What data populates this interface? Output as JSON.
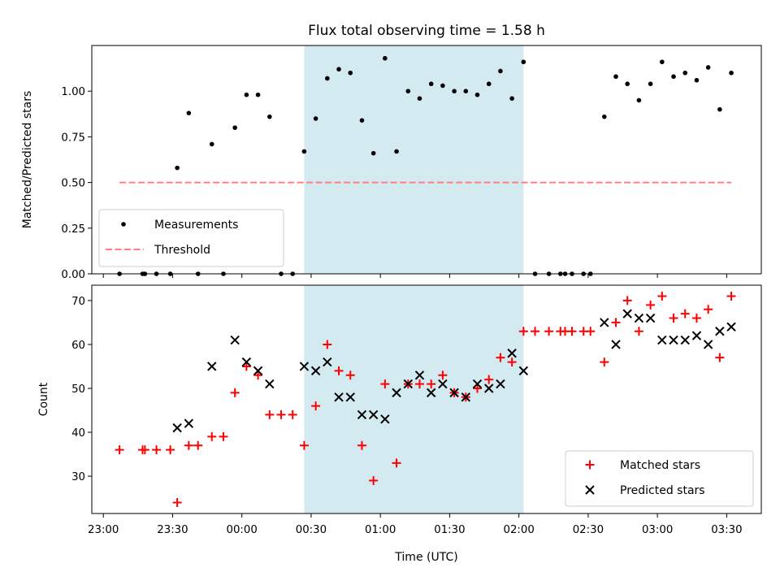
{
  "chart_data": [
    {
      "type": "scatter",
      "title": "Flux total observing time = 1.58 h",
      "xlabel": "",
      "ylabel": "Matched/Predicted stars",
      "x_axis_type": "time",
      "xlim": [
        "22:55",
        "03:45"
      ],
      "ylim": [
        0,
        1.25
      ],
      "y_ticks": [
        0.0,
        0.25,
        0.5,
        0.75,
        1.0
      ],
      "y_tick_labels": [
        "0.00",
        "0.25",
        "0.50",
        "0.75",
        "1.00"
      ],
      "shaded_interval": [
        "00:27",
        "02:02"
      ],
      "shade_color": "#d3eaf1",
      "legend_position": "lower left",
      "series": [
        {
          "name": "Measurements",
          "marker": "dot",
          "color": "#000000",
          "points": [
            [
              "23:07",
              0
            ],
            [
              "23:17",
              0
            ],
            [
              "23:18",
              0
            ],
            [
              "23:23",
              0
            ],
            [
              "23:29",
              0
            ],
            [
              "23:32",
              0.58
            ],
            [
              "23:37",
              0.88
            ],
            [
              "23:41",
              0
            ],
            [
              "23:47",
              0.71
            ],
            [
              "23:52",
              0
            ],
            [
              "23:57",
              0.8
            ],
            [
              "00:02",
              0.98
            ],
            [
              "00:07",
              0.98
            ],
            [
              "00:12",
              0.86
            ],
            [
              "00:17",
              0
            ],
            [
              "00:22",
              0
            ],
            [
              "00:27",
              0.67
            ],
            [
              "00:32",
              0.85
            ],
            [
              "00:37",
              1.07
            ],
            [
              "00:42",
              1.12
            ],
            [
              "00:47",
              1.1
            ],
            [
              "00:52",
              0.84
            ],
            [
              "00:57",
              0.66
            ],
            [
              "01:02",
              1.18
            ],
            [
              "01:07",
              0.67
            ],
            [
              "01:12",
              1.0
            ],
            [
              "01:17",
              0.96
            ],
            [
              "01:22",
              1.04
            ],
            [
              "01:27",
              1.03
            ],
            [
              "01:32",
              1.0
            ],
            [
              "01:37",
              1.0
            ],
            [
              "01:42",
              0.98
            ],
            [
              "01:47",
              1.04
            ],
            [
              "01:52",
              1.11
            ],
            [
              "01:57",
              0.96
            ],
            [
              "02:02",
              1.16
            ],
            [
              "02:07",
              0
            ],
            [
              "02:13",
              0
            ],
            [
              "02:18",
              0
            ],
            [
              "02:20",
              0
            ],
            [
              "02:23",
              0
            ],
            [
              "02:28",
              0
            ],
            [
              "02:31",
              0
            ],
            [
              "02:37",
              0.86
            ],
            [
              "02:42",
              1.08
            ],
            [
              "02:47",
              1.04
            ],
            [
              "02:52",
              0.95
            ],
            [
              "02:57",
              1.04
            ],
            [
              "03:02",
              1.16
            ],
            [
              "03:07",
              1.08
            ],
            [
              "03:12",
              1.1
            ],
            [
              "03:17",
              1.06
            ],
            [
              "03:22",
              1.13
            ],
            [
              "03:27",
              0.9
            ],
            [
              "03:32",
              1.1
            ]
          ]
        },
        {
          "name": "Threshold",
          "marker": "dashed-line",
          "color": "#ff7f7f",
          "points": [
            [
              "23:07",
              0.5
            ],
            [
              "03:32",
              0.5
            ]
          ]
        }
      ]
    },
    {
      "type": "scatter",
      "title": "",
      "xlabel": "Time (UTC)",
      "ylabel": "Count",
      "x_axis_type": "time",
      "xlim": [
        "22:55",
        "03:45"
      ],
      "ylim": [
        21.5,
        73.5
      ],
      "y_ticks": [
        30,
        40,
        50,
        60,
        70
      ],
      "y_tick_labels": [
        "30",
        "40",
        "50",
        "60",
        "70"
      ],
      "x_ticks": [
        "23:00",
        "23:30",
        "00:00",
        "00:30",
        "01:00",
        "01:30",
        "02:00",
        "02:30",
        "03:00",
        "03:30"
      ],
      "x_tick_labels": [
        "23:00",
        "23:30",
        "00:00",
        "00:30",
        "01:00",
        "01:30",
        "02:00",
        "02:30",
        "03:00",
        "03:30"
      ],
      "shaded_interval": [
        "00:27",
        "02:02"
      ],
      "shade_color": "#d3eaf1",
      "legend_position": "lower right",
      "series": [
        {
          "name": "Matched stars",
          "marker": "plus",
          "color": "#ff0000",
          "points": [
            [
              "23:07",
              36
            ],
            [
              "23:17",
              36
            ],
            [
              "23:18",
              36
            ],
            [
              "23:23",
              36
            ],
            [
              "23:29",
              36
            ],
            [
              "23:32",
              24
            ],
            [
              "23:37",
              37
            ],
            [
              "23:41",
              37
            ],
            [
              "23:47",
              39
            ],
            [
              "23:52",
              39
            ],
            [
              "23:57",
              49
            ],
            [
              "00:02",
              55
            ],
            [
              "00:07",
              53
            ],
            [
              "00:12",
              44
            ],
            [
              "00:17",
              44
            ],
            [
              "00:22",
              44
            ],
            [
              "00:27",
              37
            ],
            [
              "00:32",
              46
            ],
            [
              "00:37",
              60
            ],
            [
              "00:42",
              54
            ],
            [
              "00:47",
              53
            ],
            [
              "00:52",
              37
            ],
            [
              "00:57",
              29
            ],
            [
              "01:02",
              51
            ],
            [
              "01:07",
              33
            ],
            [
              "01:12",
              51
            ],
            [
              "01:17",
              51
            ],
            [
              "01:22",
              51
            ],
            [
              "01:27",
              53
            ],
            [
              "01:32",
              49
            ],
            [
              "01:37",
              48
            ],
            [
              "01:42",
              50
            ],
            [
              "01:47",
              52
            ],
            [
              "01:52",
              57
            ],
            [
              "01:57",
              56
            ],
            [
              "02:02",
              63
            ],
            [
              "02:07",
              63
            ],
            [
              "02:13",
              63
            ],
            [
              "02:18",
              63
            ],
            [
              "02:20",
              63
            ],
            [
              "02:23",
              63
            ],
            [
              "02:28",
              63
            ],
            [
              "02:31",
              63
            ],
            [
              "02:37",
              56
            ],
            [
              "02:42",
              65
            ],
            [
              "02:47",
              70
            ],
            [
              "02:52",
              63
            ],
            [
              "02:57",
              69
            ],
            [
              "03:02",
              71
            ],
            [
              "03:07",
              66
            ],
            [
              "03:12",
              67
            ],
            [
              "03:17",
              66
            ],
            [
              "03:22",
              68
            ],
            [
              "03:27",
              57
            ],
            [
              "03:32",
              71
            ]
          ]
        },
        {
          "name": "Predicted stars",
          "marker": "x",
          "color": "#000000",
          "points": [
            [
              "23:32",
              41
            ],
            [
              "23:37",
              42
            ],
            [
              "23:47",
              55
            ],
            [
              "23:57",
              61
            ],
            [
              "00:02",
              56
            ],
            [
              "00:07",
              54
            ],
            [
              "00:12",
              51
            ],
            [
              "00:27",
              55
            ],
            [
              "00:32",
              54
            ],
            [
              "00:37",
              56
            ],
            [
              "00:42",
              48
            ],
            [
              "00:47",
              48
            ],
            [
              "00:52",
              44
            ],
            [
              "00:57",
              44
            ],
            [
              "01:02",
              43
            ],
            [
              "01:07",
              49
            ],
            [
              "01:12",
              51
            ],
            [
              "01:17",
              53
            ],
            [
              "01:22",
              49
            ],
            [
              "01:27",
              51
            ],
            [
              "01:32",
              49
            ],
            [
              "01:37",
              48
            ],
            [
              "01:42",
              51
            ],
            [
              "01:47",
              50
            ],
            [
              "01:52",
              51
            ],
            [
              "01:57",
              58
            ],
            [
              "02:02",
              54
            ],
            [
              "02:37",
              65
            ],
            [
              "02:42",
              60
            ],
            [
              "02:47",
              67
            ],
            [
              "02:52",
              66
            ],
            [
              "02:57",
              66
            ],
            [
              "03:02",
              61
            ],
            [
              "03:07",
              61
            ],
            [
              "03:12",
              61
            ],
            [
              "03:17",
              62
            ],
            [
              "03:22",
              60
            ],
            [
              "03:27",
              63
            ],
            [
              "03:32",
              64
            ]
          ]
        }
      ]
    }
  ]
}
